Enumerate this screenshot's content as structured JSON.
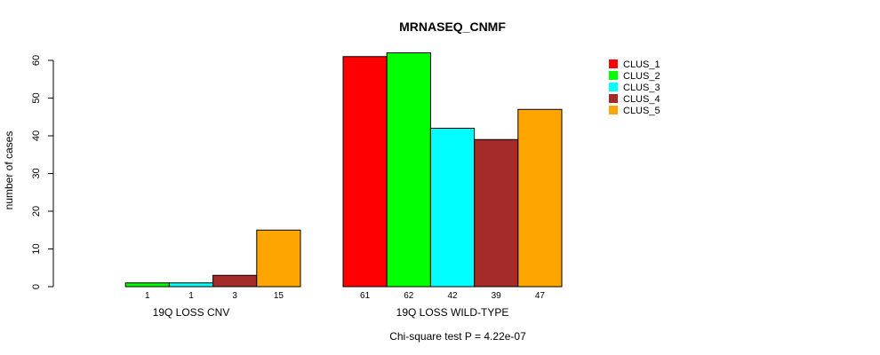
{
  "chart_data": {
    "type": "bar",
    "title": "MRNASEQ_CNMF",
    "ylabel": "number of cases",
    "xlabel": "",
    "ylim": [
      0,
      60
    ],
    "yticks": [
      0,
      10,
      20,
      30,
      40,
      50,
      60
    ],
    "categories": [
      "19Q LOSS CNV",
      "19Q LOSS WILD-TYPE"
    ],
    "series": [
      {
        "name": "CLUS_1",
        "color": "#ff0000",
        "values": [
          0,
          61
        ]
      },
      {
        "name": "CLUS_2",
        "color": "#00ff00",
        "values": [
          1,
          62
        ]
      },
      {
        "name": "CLUS_3",
        "color": "#00ffff",
        "values": [
          1,
          42
        ]
      },
      {
        "name": "CLUS_4",
        "color": "#a52a2a",
        "values": [
          3,
          39
        ]
      },
      {
        "name": "CLUS_5",
        "color": "#ffa500",
        "values": [
          15,
          47
        ]
      }
    ],
    "count_labels": [
      [
        "",
        "1",
        "1",
        "3",
        "15"
      ],
      [
        "61",
        "62",
        "42",
        "39",
        "47"
      ]
    ],
    "legend_position": "top-right",
    "grid": false,
    "footnote": "Chi-square test P = 4.22e-07"
  }
}
